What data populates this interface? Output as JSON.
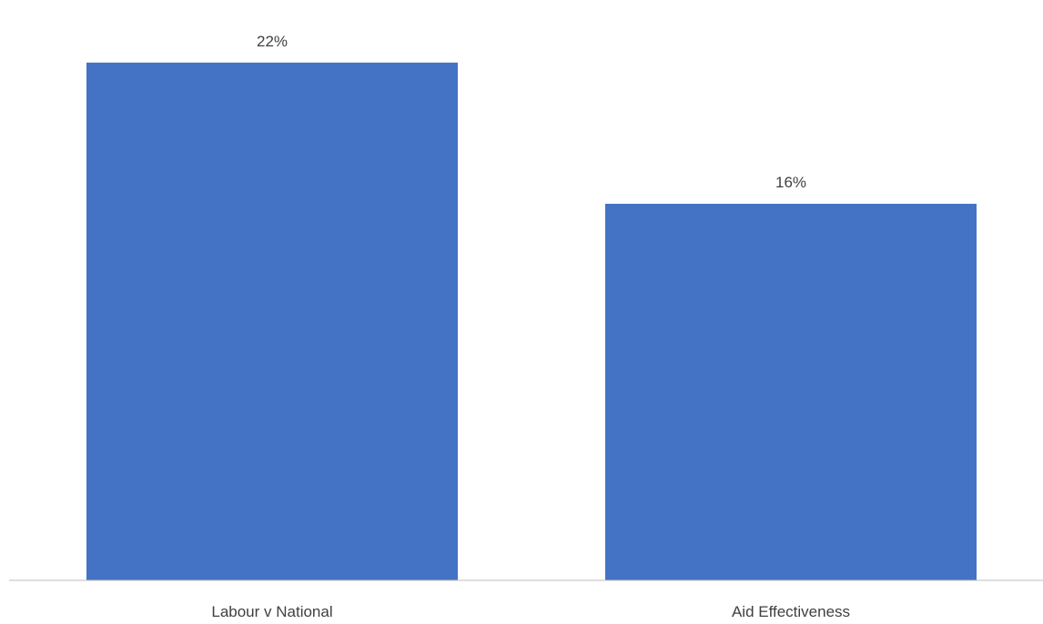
{
  "chart_data": {
    "type": "bar",
    "categories": [
      "Labour v National",
      "Aid Effectiveness"
    ],
    "values": [
      22,
      16
    ],
    "value_labels": [
      "22%",
      "16%"
    ],
    "ylim": [
      0,
      23.5
    ],
    "grid": false,
    "legend": "none",
    "bar_color": "#4472C4",
    "axis_color": "#BFBFBF",
    "label_color": "#404040"
  }
}
